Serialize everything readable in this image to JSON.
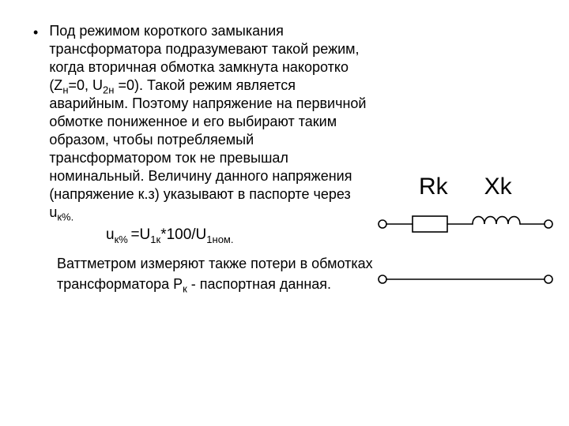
{
  "bullet_glyph": "•",
  "main_paragraph": {
    "t1": "Под режимом короткого замыкания трансформатора подразумевают такой режим, когда вторичная обмотка замкнута накоротко (Z",
    "s1": "н",
    "t2": "=0, U",
    "s2": "2н",
    "t3": " =0). Такой режим является аварийным. Поэтому напряжение на первичной обмотке пониженное и его выбирают таким образом, чтобы потребляемый трансформатором ток не превышал номинальный. Величину данного напряжения (напряжение к.з) указывают в паспорте через u",
    "s3": "к%."
  },
  "formula": {
    "f1": "u",
    "fs1": "к% ",
    "f2": "=U",
    "fs2": "1к",
    "f3": "*100/U",
    "fs3": "1ном."
  },
  "second_paragraph": {
    "p1": "Ваттметром измеряют  также потери в обмотках трансформатора P",
    "ps1": "к",
    "p2": " - паспортная данная."
  },
  "diagram": {
    "label_R": "Rk",
    "label_X": "Xk",
    "stroke": "#000000",
    "stroke_width": 1.6,
    "terminal_r_outer": 5,
    "background": "#ffffff"
  }
}
